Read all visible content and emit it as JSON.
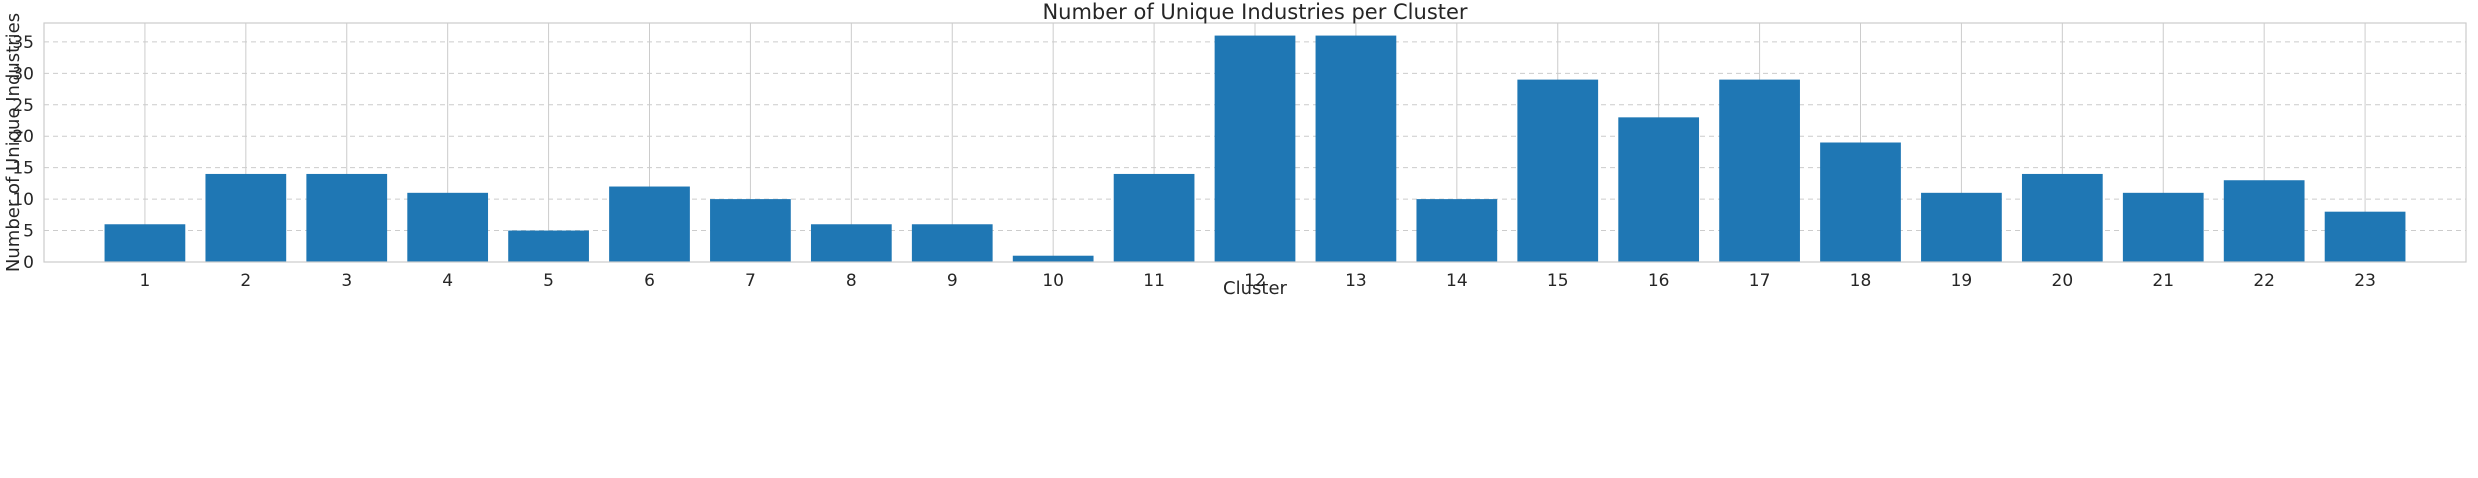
{
  "chart_data": {
    "type": "bar",
    "title": "Number of Unique Industries per Cluster",
    "xlabel": "Cluster",
    "ylabel": "Number of Unique Industries",
    "categories": [
      "1",
      "2",
      "3",
      "4",
      "5",
      "6",
      "7",
      "8",
      "9",
      "10",
      "11",
      "12",
      "13",
      "14",
      "15",
      "16",
      "17",
      "18",
      "19",
      "20",
      "21",
      "22",
      "23"
    ],
    "values": [
      6,
      14,
      14,
      11,
      5,
      12,
      10,
      6,
      6,
      1,
      14,
      36,
      36,
      10,
      29,
      23,
      29,
      19,
      11,
      14,
      11,
      13,
      8
    ],
    "ylim": [
      0,
      38
    ],
    "yticks": [
      0,
      5,
      10,
      15,
      20,
      25,
      30,
      35
    ],
    "grid": true,
    "bar_color": "#1f77b4"
  }
}
